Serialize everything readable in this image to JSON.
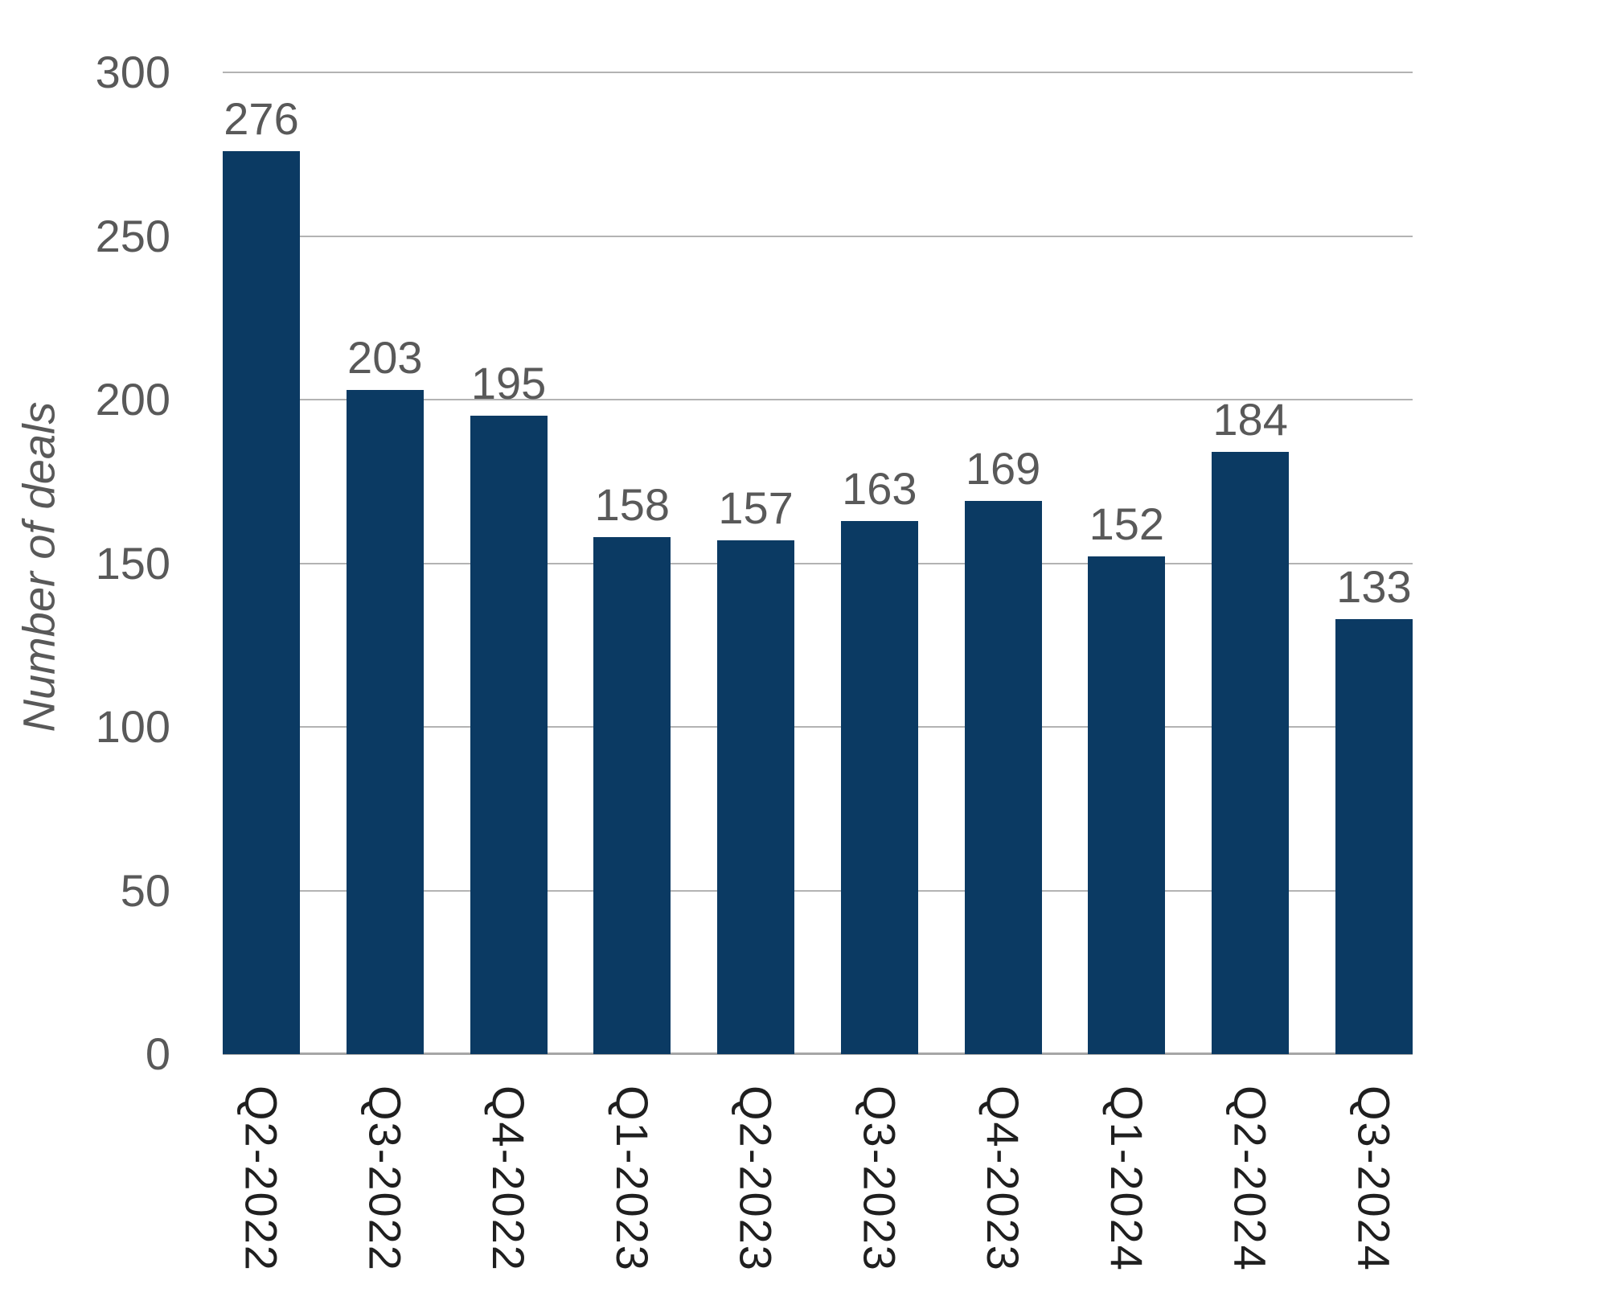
{
  "chart_data": {
    "type": "bar",
    "categories": [
      "Q2-2022",
      "Q3-2022",
      "Q4-2022",
      "Q1-2023",
      "Q2-2023",
      "Q3-2023",
      "Q4-2023",
      "Q1-2024",
      "Q2-2024",
      "Q3-2024"
    ],
    "values": [
      276,
      203,
      195,
      158,
      157,
      163,
      169,
      152,
      184,
      133
    ],
    "title": "",
    "xlabel": "",
    "ylabel": "Number of deals",
    "ylim": [
      0,
      300
    ],
    "ytick_step": 50,
    "ytick_labels": [
      "0",
      "50",
      "100",
      "150",
      "200",
      "250",
      "300"
    ],
    "grid": true,
    "legend": "none",
    "bar_color": "#0b3a63",
    "value_label_color": "#595959",
    "tick_label_color": "#595959",
    "x_label_color": "#1f1f1f",
    "gridline_color": "#b3b3b3",
    "axis_line_color": "#a6a6a6"
  }
}
